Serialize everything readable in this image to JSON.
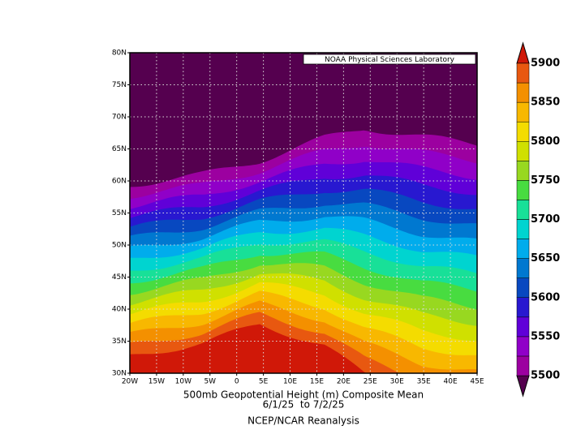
{
  "map": {
    "label": "NOAA Physical Sciences Laboratory",
    "lat_ticks": [
      "30N",
      "35N",
      "40N",
      "45N",
      "50N",
      "55N",
      "60N",
      "65N",
      "70N",
      "75N",
      "80N"
    ],
    "lon_ticks": [
      "20W",
      "15W",
      "10W",
      "5W",
      "0",
      "5E",
      "10E",
      "15E",
      "20E",
      "25E",
      "30E",
      "35E",
      "40E",
      "45E"
    ]
  },
  "caption": {
    "title": "500mb Geopotential Height (m) Composite Mean",
    "dates": "6/1/25  to 7/2/25",
    "source": "NCEP/NCAR Reanalysis"
  },
  "colorbar": {
    "ticks": [
      5500,
      5550,
      5600,
      5650,
      5700,
      5750,
      5800,
      5850,
      5900
    ]
  }
}
